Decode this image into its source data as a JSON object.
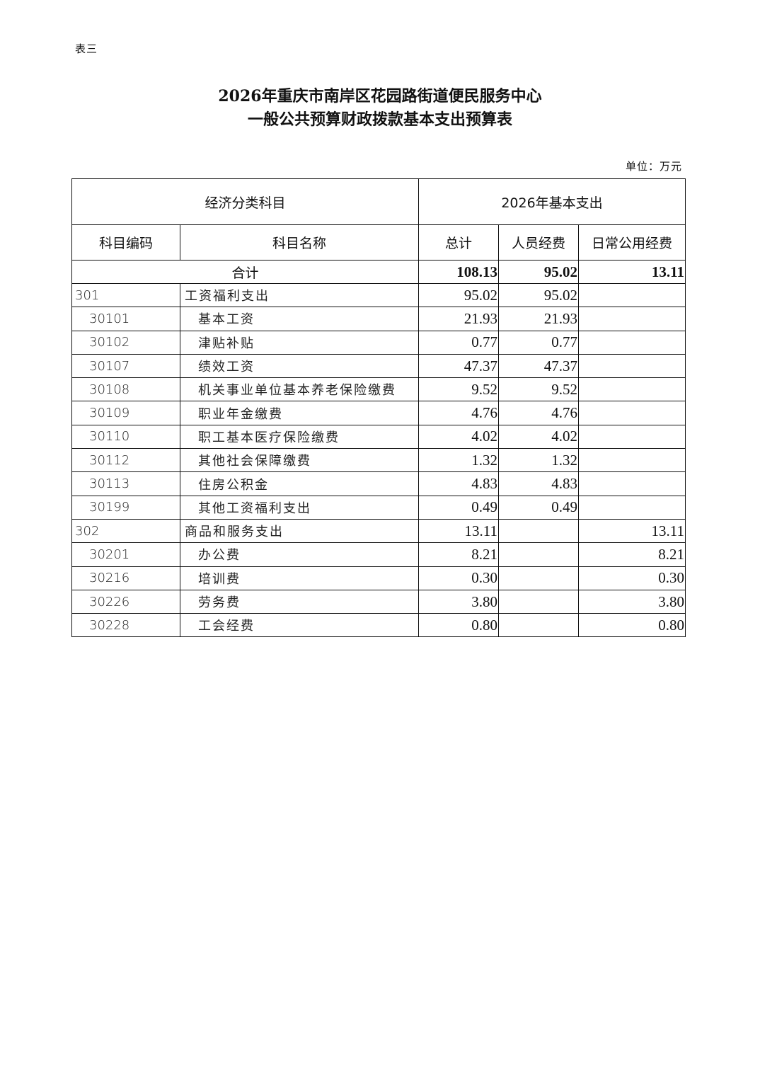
{
  "label": "表三",
  "title_line1": "2026年重庆市南岸区花园路街道便民服务中心",
  "title_line2": "一般公共预算财政拨款基本支出预算表",
  "unit": "单位：万元",
  "headers": {
    "group_left": "经济分类科目",
    "group_right": "2026年基本支出",
    "code": "科目编码",
    "name": "科目名称",
    "total": "总计",
    "personnel": "人员经费",
    "public": "日常公用经费"
  },
  "total_row": {
    "label": "合计",
    "total": "108.13",
    "personnel": "95.02",
    "public": "13.11"
  },
  "rows": [
    {
      "code": "301",
      "name": "工资福利支出",
      "total": "95.02",
      "personnel": "95.02",
      "public": "",
      "level": 1
    },
    {
      "code": "30101",
      "name": "基本工资",
      "total": "21.93",
      "personnel": "21.93",
      "public": "",
      "level": 2
    },
    {
      "code": "30102",
      "name": "津贴补贴",
      "total": "0.77",
      "personnel": "0.77",
      "public": "",
      "level": 2
    },
    {
      "code": "30107",
      "name": "绩效工资",
      "total": "47.37",
      "personnel": "47.37",
      "public": "",
      "level": 2
    },
    {
      "code": "30108",
      "name": "机关事业单位基本养老保险缴费",
      "total": "9.52",
      "personnel": "9.52",
      "public": "",
      "level": 2
    },
    {
      "code": "30109",
      "name": "职业年金缴费",
      "total": "4.76",
      "personnel": "4.76",
      "public": "",
      "level": 2
    },
    {
      "code": "30110",
      "name": "职工基本医疗保险缴费",
      "total": "4.02",
      "personnel": "4.02",
      "public": "",
      "level": 2
    },
    {
      "code": "30112",
      "name": "其他社会保障缴费",
      "total": "1.32",
      "personnel": "1.32",
      "public": "",
      "level": 2
    },
    {
      "code": "30113",
      "name": "住房公积金",
      "total": "4.83",
      "personnel": "4.83",
      "public": "",
      "level": 2
    },
    {
      "code": "30199",
      "name": "其他工资福利支出",
      "total": "0.49",
      "personnel": "0.49",
      "public": "",
      "level": 2
    },
    {
      "code": "302",
      "name": "商品和服务支出",
      "total": "13.11",
      "personnel": "",
      "public": "13.11",
      "level": 1
    },
    {
      "code": "30201",
      "name": "办公费",
      "total": "8.21",
      "personnel": "",
      "public": "8.21",
      "level": 2
    },
    {
      "code": "30216",
      "name": "培训费",
      "total": "0.30",
      "personnel": "",
      "public": "0.30",
      "level": 2
    },
    {
      "code": "30226",
      "name": "劳务费",
      "total": "3.80",
      "personnel": "",
      "public": "3.80",
      "level": 2
    },
    {
      "code": "30228",
      "name": "工会经费",
      "total": "0.80",
      "personnel": "",
      "public": "0.80",
      "level": 2
    }
  ]
}
